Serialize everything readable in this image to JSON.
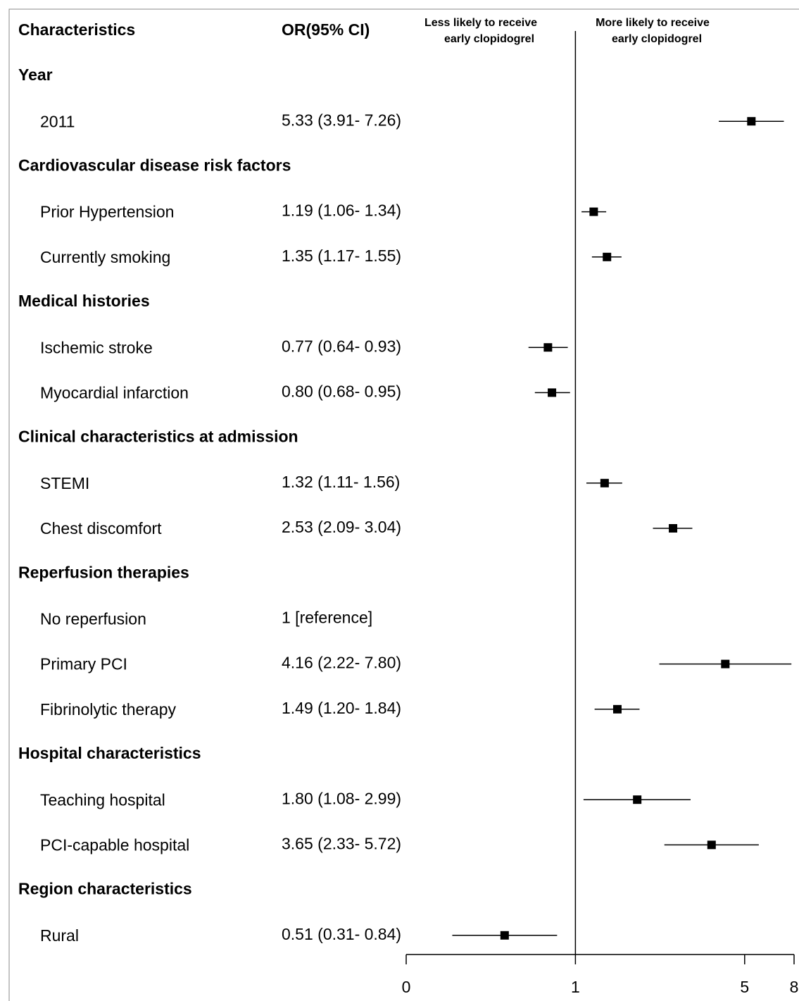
{
  "chart_data": {
    "type": "forest",
    "column_headers": [
      "Characteristics",
      "OR(95% CI)"
    ],
    "left_annotation": [
      "Less likely to receive",
      "early clopidogrel"
    ],
    "right_annotation": [
      "More likely to receive",
      "early clopidogrel"
    ],
    "x_scale": "log",
    "xlim": [
      0.2,
      8
    ],
    "xticks": [
      {
        "value": 0.2,
        "label": "0"
      },
      1,
      5,
      8
    ],
    "reference_line": 1,
    "color": "#000000",
    "groups": [
      {
        "name": "Year",
        "categories": [
          "2011"
        ],
        "values": [
          5.33
        ],
        "lower": [
          3.91
        ],
        "upper": [
          7.26
        ],
        "value_labels": [
          "5.33 (3.91- 7.26)"
        ]
      },
      {
        "name": "Cardiovascular disease risk factors",
        "categories": [
          "Prior Hypertension",
          "Currently smoking"
        ],
        "values": [
          1.19,
          1.35
        ],
        "lower": [
          1.06,
          1.17
        ],
        "upper": [
          1.34,
          1.55
        ],
        "value_labels": [
          "1.19 (1.06- 1.34)",
          "1.35 (1.17- 1.55)"
        ]
      },
      {
        "name": "Medical histories",
        "categories": [
          "Ischemic stroke",
          "Myocardial infarction"
        ],
        "values": [
          0.77,
          0.8
        ],
        "lower": [
          0.64,
          0.68
        ],
        "upper": [
          0.93,
          0.95
        ],
        "value_labels": [
          "0.77 (0.64- 0.93)",
          "0.80 (0.68- 0.95)"
        ]
      },
      {
        "name": "Clinical characteristics at admission",
        "categories": [
          "STEMI",
          "Chest discomfort"
        ],
        "values": [
          1.32,
          2.53
        ],
        "lower": [
          1.11,
          2.09
        ],
        "upper": [
          1.56,
          3.04
        ],
        "value_labels": [
          "1.32 (1.11- 1.56)",
          "2.53 (2.09- 3.04)"
        ]
      },
      {
        "name": "Reperfusion therapies",
        "categories": [
          "No reperfusion",
          "Primary PCI",
          "Fibrinolytic therapy"
        ],
        "values": [
          null,
          4.16,
          1.49
        ],
        "lower": [
          null,
          2.22,
          1.2
        ],
        "upper": [
          null,
          7.8,
          1.84
        ],
        "value_labels": [
          "1 [reference]",
          "4.16 (2.22- 7.80)",
          "1.49 (1.20- 1.84)"
        ]
      },
      {
        "name": "Hospital characteristics",
        "categories": [
          "Teaching hospital",
          "PCI-capable hospital"
        ],
        "values": [
          1.8,
          3.65
        ],
        "lower": [
          1.08,
          2.33
        ],
        "upper": [
          2.99,
          5.72
        ],
        "value_labels": [
          "1.80 (1.08- 2.99)",
          "3.65 (2.33- 5.72)"
        ]
      },
      {
        "name": "Region characteristics",
        "categories": [
          "Rural"
        ],
        "values": [
          0.51
        ],
        "lower": [
          0.31
        ],
        "upper": [
          0.84
        ],
        "value_labels": [
          "0.51 (0.31- 0.84)"
        ]
      }
    ]
  }
}
